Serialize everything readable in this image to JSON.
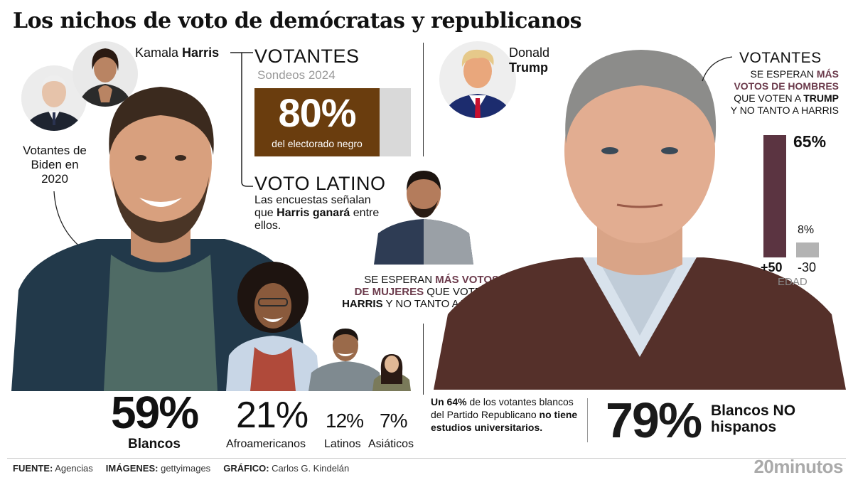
{
  "title": "Los nichos de voto de demócratas y republicanos",
  "harris": {
    "name_first": "Kamala",
    "name_last": "Harris",
    "biden_label": "Votantes de Biden en 2020"
  },
  "trump": {
    "name_first": "Donald",
    "name_last": "Trump"
  },
  "votantes_left": {
    "title": "VOTANTES",
    "subtitle": "Sondeos 2024",
    "value": "80%",
    "value_caption": "del electorado negro",
    "fill_fraction": 0.8
  },
  "voto_latino": {
    "title": "VOTO LATINO",
    "text_before": "Las encuestas señalan que",
    "text_bold": "Harris ganará",
    "text_after": "entre ellos."
  },
  "mujeres_note": {
    "line1_a": "SE ESPERAN",
    "line1_b": "MÁS VOTOS",
    "line2_a": "DE MUJERES",
    "line2_b": "QUE VOTEN A",
    "line3_a": "HARRIS",
    "line3_b": "Y NO TANTO A TRUMP"
  },
  "votantes_right": {
    "title": "VOTANTES",
    "line1_a": "SE ESPERAN",
    "line1_b": "MÁS",
    "line2": "VOTOS DE HOMBRES",
    "line3_a": "QUE VOTEN A",
    "line3_b": "TRUMP",
    "line4": "Y NO TANTO A HARRIS"
  },
  "chart_data": {
    "type": "bar",
    "categories": [
      "+50",
      "-30"
    ],
    "values": [
      65,
      8
    ],
    "value_labels": [
      "65%",
      "8%"
    ],
    "xlabel": "EDAD",
    "ylim": [
      0,
      65
    ],
    "colors": [
      "#5b3441",
      "#b3b3b3"
    ]
  },
  "harris_groups": [
    {
      "value": "59%",
      "label": "Blancos"
    },
    {
      "value": "21%",
      "label": "Afroamericanos"
    },
    {
      "value": "12%",
      "label": "Latinos"
    },
    {
      "value": "7%",
      "label": "Asiáticos"
    }
  ],
  "trump_stats": {
    "note_bold1": "Un 64%",
    "note_text": "de los votantes blancos del Partido Republicano",
    "note_bold2": "no tiene estudios universitarios.",
    "value": "79%",
    "label": "Blancos NO hispanos"
  },
  "footer": {
    "fuente_label": "FUENTE:",
    "fuente": "Agencias",
    "imagenes_label": "IMÁGENES:",
    "imagenes": "gettyimages",
    "grafico_label": "GRÁFICO:",
    "grafico": "Carlos G. Kindelán",
    "logo": "20minutos"
  },
  "colors": {
    "brown": "#6a3d0e",
    "maroon": "#5b3441",
    "accent": "#6b3a4b",
    "gray_bar": "#d9d9d9"
  }
}
